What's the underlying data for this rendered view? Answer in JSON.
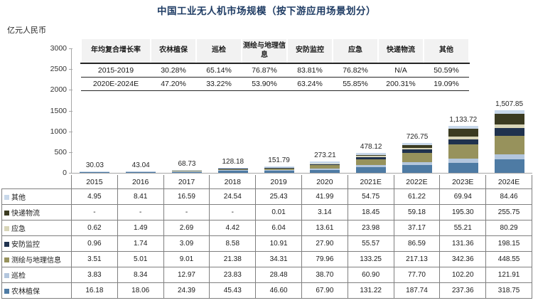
{
  "title": "中国工业无人机市场规模（按下游应用场景划分）",
  "y_unit": "亿元人民币",
  "cagr_table": {
    "headers": [
      "年均复合增长率",
      "农林植保",
      "巡检",
      "测绘与地理信息",
      "安防监控",
      "应急",
      "快递物流",
      "其他"
    ],
    "rows": [
      {
        "label": "2015-2019",
        "values": [
          "30.28%",
          "65.14%",
          "76.87%",
          "83.81%",
          "76.82%",
          "N/A",
          "50.59%"
        ]
      },
      {
        "label": "2020E-2024E",
        "values": [
          "47.20%",
          "33.22%",
          "53.90%",
          "63.24%",
          "55.85%",
          "200.31%",
          "19.09%"
        ]
      }
    ]
  },
  "chart_data": {
    "type": "bar",
    "stacked": true,
    "title": "中国工业无人机市场规模（按下游应用场景划分）",
    "ylabel": "亿元人民币",
    "ylim": [
      0,
      3000
    ],
    "yticks": [
      0,
      500,
      1000,
      1500,
      2000,
      2500,
      3000
    ],
    "categories": [
      "2015",
      "2016",
      "2017",
      "2018",
      "2019",
      "2020",
      "2021E",
      "2022E",
      "2023E",
      "2024E"
    ],
    "series": [
      {
        "name": "农林植保",
        "color": "#4e7ba4",
        "values": [
          16.18,
          18.06,
          24.39,
          45.43,
          46.6,
          67.9,
          131.22,
          187.74,
          237.36,
          318.75
        ]
      },
      {
        "name": "巡检",
        "color": "#b3c6dd",
        "values": [
          3.83,
          8.34,
          12.97,
          23.83,
          28.48,
          38.7,
          60.9,
          77.7,
          102.2,
          121.91
        ]
      },
      {
        "name": "测绘与地理信息",
        "color": "#97925c",
        "values": [
          3.51,
          5.01,
          9.01,
          21.38,
          34.31,
          79.96,
          133.25,
          217.13,
          342.36,
          448.55
        ]
      },
      {
        "name": "安防监控",
        "color": "#20324e",
        "values": [
          0.96,
          1.74,
          3.09,
          8.58,
          10.91,
          27.9,
          55.57,
          86.59,
          131.36,
          198.15
        ]
      },
      {
        "name": "应急",
        "color": "#d8d5b8",
        "values": [
          0.62,
          1.49,
          2.69,
          4.42,
          6.04,
          13.61,
          23.98,
          37.17,
          55.21,
          80.29
        ]
      },
      {
        "name": "快递物流",
        "color": "#3b3b21",
        "values": [
          0,
          0,
          0,
          0,
          0.01,
          3.14,
          18.45,
          59.18,
          195.3,
          255.75
        ]
      },
      {
        "name": "其他",
        "color": "#c8d8ea",
        "values": [
          4.95,
          8.41,
          16.59,
          24.54,
          25.43,
          41.99,
          54.75,
          61.22,
          69.94,
          84.46
        ]
      }
    ],
    "totals": [
      "30.03",
      "43.04",
      "68.73",
      "128.18",
      "151.79",
      "273.21",
      "478.12",
      "726.75",
      "1,133.72",
      "1,507.85"
    ]
  },
  "data_table": {
    "year_headers": [
      "2015",
      "2016",
      "2017",
      "2018",
      "2019",
      "2020",
      "2021E",
      "2022E",
      "2023E",
      "2024E"
    ],
    "rows": [
      {
        "label": "其他",
        "color": "#c8d8ea",
        "values": [
          "4.95",
          "8.41",
          "16.59",
          "24.54",
          "25.43",
          "41.99",
          "54.75",
          "61.22",
          "69.94",
          "84.46"
        ]
      },
      {
        "label": "快递物流",
        "color": "#3b3b21",
        "values": [
          "-",
          "-",
          "-",
          "-",
          "0.01",
          "3.14",
          "18.45",
          "59.18",
          "195.30",
          "255.75"
        ]
      },
      {
        "label": "应急",
        "color": "#d8d5b8",
        "values": [
          "0.62",
          "1.49",
          "2.69",
          "4.42",
          "6.04",
          "13.61",
          "23.98",
          "37.17",
          "55.21",
          "80.29"
        ]
      },
      {
        "label": "安防监控",
        "color": "#20324e",
        "values": [
          "0.96",
          "1.74",
          "3.09",
          "8.58",
          "10.91",
          "27.90",
          "55.57",
          "86.59",
          "131.36",
          "198.15"
        ]
      },
      {
        "label": "测绘与地理信息",
        "color": "#97925c",
        "values": [
          "3.51",
          "5.01",
          "9.01",
          "21.38",
          "34.31",
          "79.96",
          "133.25",
          "217.13",
          "342.36",
          "448.55"
        ]
      },
      {
        "label": "巡检",
        "color": "#b3c6dd",
        "values": [
          "3.83",
          "8.34",
          "12.97",
          "23.83",
          "28.48",
          "38.70",
          "60.90",
          "77.70",
          "102.20",
          "121.91"
        ]
      },
      {
        "label": "农林植保",
        "color": "#4e7ba4",
        "values": [
          "16.18",
          "18.06",
          "24.39",
          "45.43",
          "46.60",
          "67.90",
          "131.22",
          "187.74",
          "237.36",
          "318.75"
        ]
      }
    ]
  }
}
